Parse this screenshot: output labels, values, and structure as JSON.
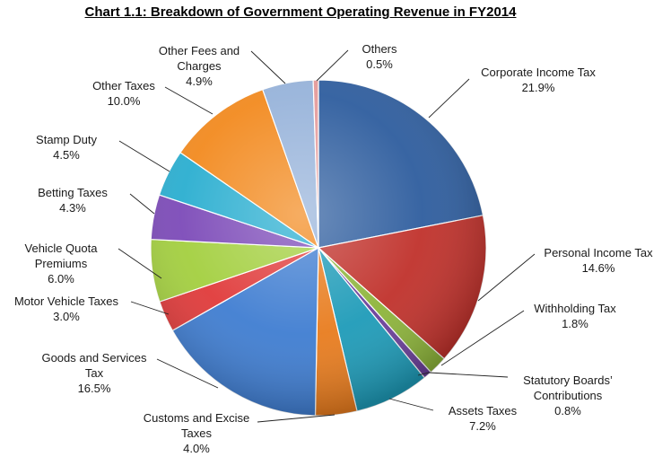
{
  "chart_data": {
    "type": "pie",
    "title": "Chart 1.1: Breakdown of Government Operating Revenue in FY2014",
    "unit": "%",
    "slices": [
      {
        "label": "Corporate Income Tax",
        "value": 21.9,
        "color": "#2E5D9E"
      },
      {
        "label": "Personal Income Tax",
        "value": 14.6,
        "color": "#C0312B"
      },
      {
        "label": "Withholding Tax",
        "value": 1.8,
        "color": "#8DB43A"
      },
      {
        "label": "Statutory Boards’ Contributions",
        "value": 0.8,
        "color": "#6B3F9A"
      },
      {
        "label": "Assets Taxes",
        "value": 7.2,
        "color": "#1E9BB8"
      },
      {
        "label": "Customs and Excise Taxes",
        "value": 4.0,
        "color": "#E87C1E"
      },
      {
        "label": "Goods and Services Tax",
        "value": 16.5,
        "color": "#3F7DD1"
      },
      {
        "label": "Motor Vehicle Taxes",
        "value": 3.0,
        "color": "#E03A3A"
      },
      {
        "label": "Vehicle Quota Premiums",
        "value": 6.0,
        "color": "#A3CF3F"
      },
      {
        "label": "Betting Taxes",
        "value": 4.3,
        "color": "#7C4AB8"
      },
      {
        "label": "Stamp Duty",
        "value": 4.5,
        "color": "#2AAED0"
      },
      {
        "label": "Other Taxes",
        "value": 10.0,
        "color": "#F28A1F"
      },
      {
        "label": "Other Fees and Charges",
        "value": 4.9,
        "color": "#97B3DA"
      },
      {
        "label": "Others",
        "value": 0.5,
        "color": "#E59A9A"
      }
    ],
    "label_lines": [
      [
        "Corporate Income Tax",
        "21.9%"
      ],
      [
        "Personal Income Tax",
        "14.6%"
      ],
      [
        "Withholding Tax",
        "1.8%"
      ],
      [
        "Statutory Boards’",
        "Contributions",
        "0.8%"
      ],
      [
        "Assets Taxes",
        "7.2%"
      ],
      [
        "Customs and Excise",
        "Taxes",
        "4.0%"
      ],
      [
        "Goods and Services",
        "Tax",
        "16.5%"
      ],
      [
        "Motor Vehicle Taxes",
        "3.0%"
      ],
      [
        "Vehicle Quota",
        "Premiums",
        "6.0%"
      ],
      [
        "Betting Taxes",
        "4.3%"
      ],
      [
        "Stamp Duty",
        "4.5%"
      ],
      [
        "Other Taxes",
        "10.0%"
      ],
      [
        "Other Fees and",
        "Charges",
        "4.9%"
      ],
      [
        "Others",
        "0.5%"
      ]
    ]
  }
}
